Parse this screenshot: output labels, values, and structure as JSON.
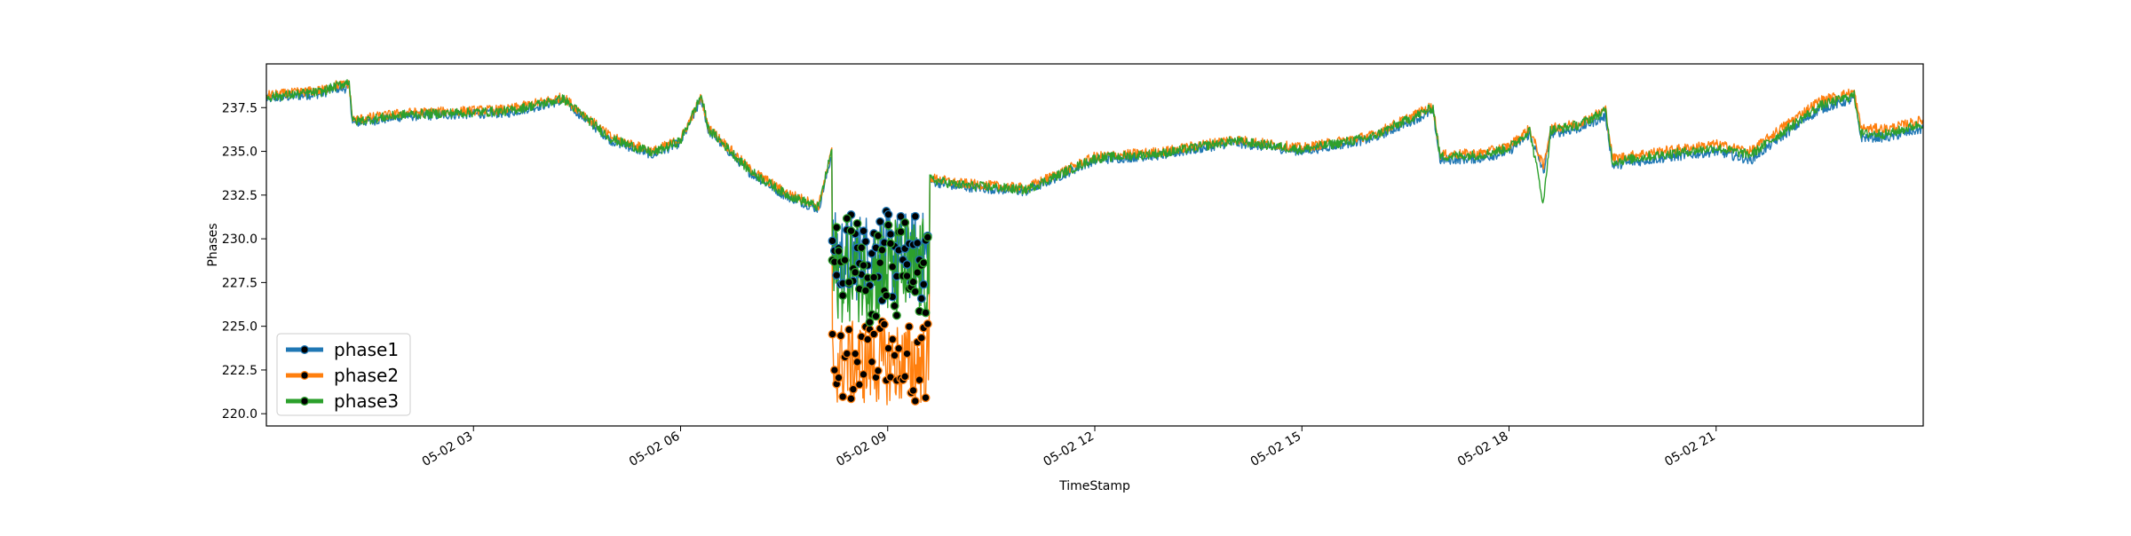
{
  "chart_data": {
    "type": "line",
    "title": "",
    "xlabel": "TimeStamp",
    "ylabel": "Phases",
    "x_unit": "hours since 05-02 00:00",
    "xlim": [
      0,
      24
    ],
    "ylim": [
      219.3,
      240.0
    ],
    "yticks": [
      220.0,
      222.5,
      225.0,
      227.5,
      230.0,
      232.5,
      235.0,
      237.5
    ],
    "ytick_labels": [
      "220.0",
      "222.5",
      "225.0",
      "227.5",
      "230.0",
      "232.5",
      "235.0",
      "237.5"
    ],
    "xticks": [
      3,
      6,
      9,
      12,
      15,
      18,
      21
    ],
    "xtick_labels": [
      "05-02 03",
      "05-02 06",
      "05-02 09",
      "05-02 12",
      "05-02 15",
      "05-02 18",
      "05-02 21"
    ],
    "grid": false,
    "legend": "lower-left",
    "anomaly_window_hours": [
      8.2,
      9.6
    ],
    "series": [
      {
        "name": "phase1",
        "color": "#1f77b4",
        "keypoints": [
          [
            0.0,
            238.0
          ],
          [
            0.8,
            238.3
          ],
          [
            1.0,
            238.6
          ],
          [
            1.2,
            238.6
          ],
          [
            1.25,
            236.6
          ],
          [
            2.0,
            237.0
          ],
          [
            3.5,
            237.2
          ],
          [
            4.3,
            237.9
          ],
          [
            5.0,
            235.6
          ],
          [
            5.6,
            234.8
          ],
          [
            6.0,
            235.5
          ],
          [
            6.3,
            238.0
          ],
          [
            6.4,
            236.2
          ],
          [
            7.0,
            233.8
          ],
          [
            7.5,
            232.5
          ],
          [
            8.0,
            231.7
          ],
          [
            8.2,
            235.0
          ],
          [
            8.3,
            234.3
          ],
          [
            10.0,
            233.0
          ],
          [
            11.0,
            232.7
          ],
          [
            12.0,
            234.5
          ],
          [
            13.0,
            234.8
          ],
          [
            14.0,
            235.5
          ],
          [
            15.0,
            235.0
          ],
          [
            16.0,
            235.7
          ],
          [
            16.9,
            237.3
          ],
          [
            17.0,
            234.5
          ],
          [
            17.6,
            234.6
          ],
          [
            18.0,
            235.0
          ],
          [
            18.3,
            236.0
          ],
          [
            18.5,
            233.8
          ],
          [
            18.6,
            236.0
          ],
          [
            19.0,
            236.3
          ],
          [
            19.4,
            237.0
          ],
          [
            19.5,
            234.2
          ],
          [
            20.0,
            234.5
          ],
          [
            21.0,
            235.0
          ],
          [
            21.5,
            234.5
          ],
          [
            22.0,
            236.0
          ],
          [
            22.5,
            237.4
          ],
          [
            23.0,
            238.0
          ],
          [
            23.1,
            235.8
          ],
          [
            23.5,
            235.8
          ],
          [
            24.0,
            236.3
          ]
        ],
        "anomaly_center": 229.0,
        "anomaly_spread": 2.6
      },
      {
        "name": "phase2",
        "color": "#ff7f0e",
        "keypoints": [
          [
            0.0,
            238.2
          ],
          [
            0.8,
            238.5
          ],
          [
            1.0,
            238.8
          ],
          [
            1.2,
            238.8
          ],
          [
            1.25,
            236.8
          ],
          [
            2.0,
            237.2
          ],
          [
            3.5,
            237.4
          ],
          [
            4.3,
            238.1
          ],
          [
            5.0,
            235.8
          ],
          [
            5.6,
            235.0
          ],
          [
            6.0,
            235.7
          ],
          [
            6.3,
            238.1
          ],
          [
            6.4,
            236.4
          ],
          [
            7.0,
            234.0
          ],
          [
            7.5,
            232.7
          ],
          [
            8.0,
            231.9
          ],
          [
            8.2,
            235.2
          ],
          [
            8.3,
            234.5
          ],
          [
            10.0,
            233.2
          ],
          [
            11.0,
            232.9
          ],
          [
            12.0,
            234.7
          ],
          [
            13.0,
            235.0
          ],
          [
            14.0,
            235.7
          ],
          [
            15.0,
            235.2
          ],
          [
            16.0,
            235.9
          ],
          [
            16.9,
            237.6
          ],
          [
            17.0,
            234.8
          ],
          [
            17.6,
            234.9
          ],
          [
            18.0,
            235.3
          ],
          [
            18.3,
            236.3
          ],
          [
            18.5,
            234.1
          ],
          [
            18.6,
            236.3
          ],
          [
            19.0,
            236.6
          ],
          [
            19.4,
            237.4
          ],
          [
            19.5,
            234.6
          ],
          [
            20.0,
            234.9
          ],
          [
            21.0,
            235.4
          ],
          [
            21.5,
            235.0
          ],
          [
            22.0,
            236.5
          ],
          [
            22.5,
            237.9
          ],
          [
            23.0,
            238.4
          ],
          [
            23.1,
            236.3
          ],
          [
            23.5,
            236.3
          ],
          [
            24.0,
            236.8
          ]
        ],
        "anomaly_center": 222.9,
        "anomaly_spread": 2.4
      },
      {
        "name": "phase3",
        "color": "#2ca02c",
        "keypoints": [
          [
            0.0,
            238.1
          ],
          [
            0.8,
            238.4
          ],
          [
            1.0,
            238.7
          ],
          [
            1.2,
            239.0
          ],
          [
            1.25,
            236.7
          ],
          [
            2.0,
            237.1
          ],
          [
            3.5,
            237.3
          ],
          [
            4.3,
            238.0
          ],
          [
            5.0,
            235.7
          ],
          [
            5.6,
            234.9
          ],
          [
            6.0,
            235.6
          ],
          [
            6.3,
            238.2
          ],
          [
            6.4,
            236.3
          ],
          [
            7.0,
            233.9
          ],
          [
            7.5,
            232.6
          ],
          [
            8.0,
            231.8
          ],
          [
            8.2,
            235.3
          ],
          [
            8.3,
            234.4
          ],
          [
            10.0,
            233.1
          ],
          [
            11.0,
            232.8
          ],
          [
            12.0,
            234.6
          ],
          [
            13.0,
            234.9
          ],
          [
            14.0,
            235.6
          ],
          [
            15.0,
            235.1
          ],
          [
            16.0,
            235.8
          ],
          [
            16.9,
            237.5
          ],
          [
            17.0,
            234.7
          ],
          [
            17.6,
            234.8
          ],
          [
            18.0,
            235.2
          ],
          [
            18.3,
            236.2
          ],
          [
            18.5,
            232.0
          ],
          [
            18.6,
            236.2
          ],
          [
            19.0,
            236.5
          ],
          [
            19.4,
            237.3
          ],
          [
            19.5,
            234.4
          ],
          [
            20.0,
            234.7
          ],
          [
            21.0,
            235.2
          ],
          [
            21.5,
            234.8
          ],
          [
            22.0,
            236.2
          ],
          [
            22.5,
            237.6
          ],
          [
            23.0,
            238.2
          ],
          [
            23.1,
            236.0
          ],
          [
            23.5,
            236.0
          ],
          [
            24.0,
            236.6
          ]
        ],
        "anomaly_center": 228.2,
        "anomaly_spread": 3.0
      }
    ]
  }
}
